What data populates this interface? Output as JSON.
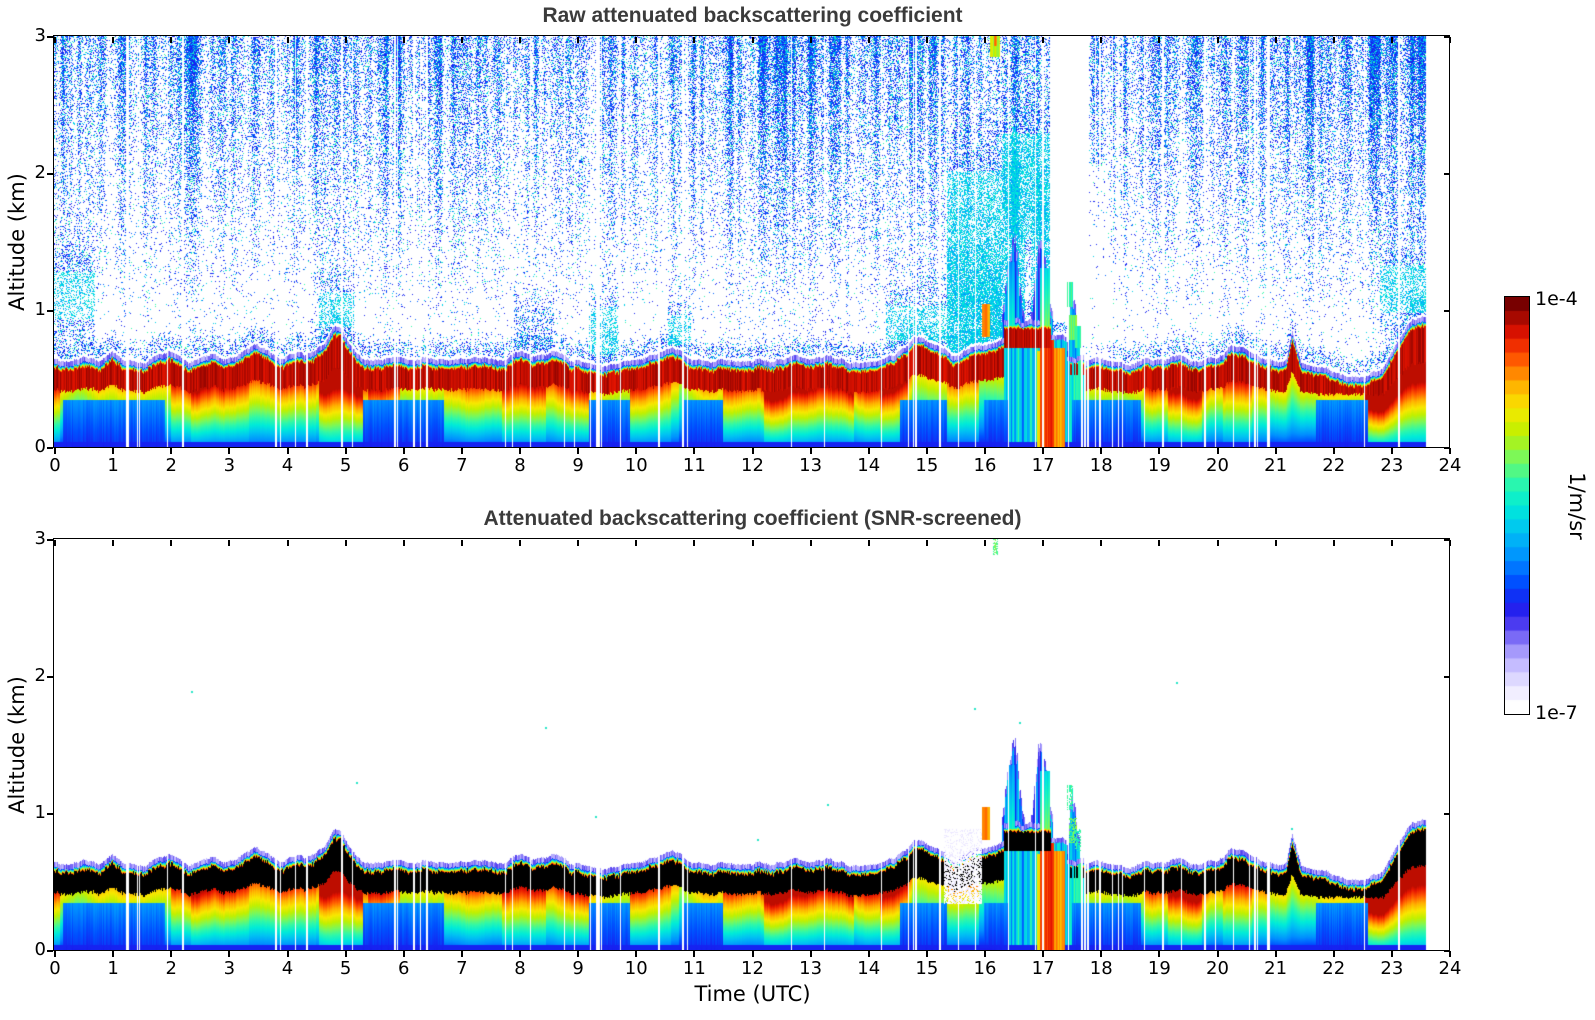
{
  "panels": [
    {
      "id": "raw",
      "title": "Raw attenuated backscattering coefficient",
      "noise": true,
      "over": false
    },
    {
      "id": "screened",
      "title": "Attenuated backscattering coefficient (SNR-screened)",
      "noise": false,
      "over": true
    }
  ],
  "chart_data": {
    "type": "heatmap",
    "x": {
      "label": "Time (UTC)",
      "range": [
        0,
        24
      ],
      "ticks": [
        0,
        1,
        2,
        3,
        4,
        5,
        6,
        7,
        8,
        9,
        10,
        11,
        12,
        13,
        14,
        15,
        16,
        17,
        18,
        19,
        20,
        21,
        22,
        23,
        24
      ]
    },
    "y": {
      "label": "Altitude (km)",
      "range": [
        0,
        3
      ],
      "ticks": [
        0,
        1,
        2,
        3
      ]
    },
    "colorbar": {
      "max_label": "1e-4",
      "min_label": "1e-7",
      "unit": "1/m/sr"
    },
    "value_range": [
      "1e-7",
      "1e-4"
    ],
    "data_end_utc": 23.6,
    "layer_top": {
      "t": [
        0,
        0.25,
        0.5,
        0.75,
        1.0,
        1.2,
        1.45,
        1.7,
        1.95,
        2.1,
        2.3,
        2.5,
        2.7,
        2.9,
        3.1,
        3.3,
        3.5,
        3.7,
        3.9,
        4.1,
        4.3,
        4.5,
        4.65,
        4.8,
        4.95,
        5.1,
        5.3,
        5.6,
        5.9,
        6.2,
        6.5,
        6.8,
        7.1,
        7.4,
        7.7,
        8.0,
        8.3,
        8.6,
        8.9,
        9.2,
        9.5,
        9.8,
        10.1,
        10.4,
        10.65,
        10.9,
        11.2,
        11.5,
        11.8,
        12.1,
        12.4,
        12.7,
        13.0,
        13.3,
        13.6,
        13.9,
        14.2,
        14.45,
        14.7,
        14.95,
        15.2,
        15.45,
        15.7,
        15.95,
        16.2,
        16.45,
        16.7,
        16.95,
        17.2,
        17.45,
        17.7,
        17.95,
        18.2,
        18.5,
        18.8,
        19.1,
        19.4,
        19.7,
        20.0,
        20.25,
        20.5,
        20.75,
        21.0,
        21.2,
        21.3,
        21.45,
        21.7,
        22.0,
        22.3,
        22.6,
        22.85,
        23.05,
        23.25,
        23.45,
        23.6
      ],
      "h": [
        0.64,
        0.61,
        0.67,
        0.62,
        0.69,
        0.63,
        0.6,
        0.65,
        0.7,
        0.67,
        0.6,
        0.63,
        0.68,
        0.62,
        0.66,
        0.71,
        0.74,
        0.68,
        0.64,
        0.7,
        0.66,
        0.71,
        0.76,
        0.88,
        0.84,
        0.72,
        0.65,
        0.62,
        0.66,
        0.62,
        0.65,
        0.62,
        0.64,
        0.66,
        0.63,
        0.7,
        0.66,
        0.69,
        0.63,
        0.61,
        0.59,
        0.62,
        0.64,
        0.67,
        0.72,
        0.65,
        0.61,
        0.63,
        0.61,
        0.64,
        0.62,
        0.66,
        0.63,
        0.67,
        0.62,
        0.6,
        0.63,
        0.68,
        0.76,
        0.8,
        0.74,
        0.66,
        0.7,
        0.74,
        0.78,
        0.8,
        0.82,
        0.85,
        0.8,
        0.66,
        0.62,
        0.64,
        0.62,
        0.6,
        0.64,
        0.62,
        0.66,
        0.62,
        0.66,
        0.73,
        0.7,
        0.64,
        0.62,
        0.64,
        0.86,
        0.62,
        0.58,
        0.55,
        0.5,
        0.52,
        0.58,
        0.72,
        0.88,
        0.95,
        0.94
      ]
    },
    "band_overrides": [
      {
        "t0": 16.33,
        "t1": 17.15,
        "top": 0.92,
        "coreTop": 0.86,
        "coreBot": 0.72,
        "under": "plume"
      },
      {
        "t0": 17.15,
        "t1": 17.42,
        "top": 0.8,
        "coreTop": 0,
        "coreBot": 0,
        "under": "plume"
      },
      {
        "t0": 17.42,
        "t1": 17.75,
        "top": 0.66,
        "coreTop": 0.6,
        "coreBot": 0.52,
        "under": "plume",
        "broken": 0.55
      }
    ],
    "plumes": [
      {
        "pts": [
          [
            16.3,
            0.92
          ],
          [
            16.36,
            1.15
          ],
          [
            16.43,
            1.38
          ],
          [
            16.5,
            1.6
          ],
          [
            16.57,
            1.38
          ],
          [
            16.63,
            1.1
          ],
          [
            16.7,
            0.95
          ]
        ]
      },
      {
        "pts": [
          [
            16.8,
            0.92
          ],
          [
            16.88,
            1.25
          ],
          [
            16.94,
            1.5
          ],
          [
            17.0,
            1.42
          ],
          [
            17.06,
            1.3
          ],
          [
            17.12,
            1.1
          ],
          [
            17.18,
            0.95
          ]
        ]
      },
      {
        "pts": [
          [
            17.42,
            0.7
          ],
          [
            17.47,
            1.02
          ],
          [
            17.52,
            1.14
          ],
          [
            17.58,
            0.96
          ],
          [
            17.64,
            0.78
          ]
        ]
      }
    ],
    "hot_streaks": [
      {
        "t0": 15.95,
        "t1": 16.09,
        "z0": 0.8,
        "z1": 1.04,
        "v": 0.8
      },
      {
        "t0": 16.42,
        "t1": 16.52,
        "z0": 0.8,
        "z1": 1.35,
        "v": 0.52,
        "fade": true
      },
      {
        "t0": 16.9,
        "t1": 16.95,
        "z0": 0.0,
        "z1": 0.7,
        "v": 0.7
      },
      {
        "t0": 16.95,
        "t1": 17.2,
        "z0": 0.0,
        "z1": 0.78,
        "v": 0.86
      },
      {
        "t0": 17.2,
        "t1": 17.38,
        "z0": 0.0,
        "z1": 0.72,
        "v": 0.78
      },
      {
        "t0": 16.95,
        "t1": 17.12,
        "z0": 0.78,
        "z1": 1.3,
        "v": 0.62,
        "fade": true
      }
    ],
    "blobs_raw": [
      {
        "t0": 16.1,
        "t1": 16.27,
        "z0": 2.84,
        "z1": 3.0,
        "v": 0.62
      },
      {
        "t0": 16.16,
        "t1": 16.22,
        "z0": 2.92,
        "z1": 3.0,
        "v": 0.78
      },
      {
        "t0": 17.42,
        "t1": 17.52,
        "z0": 1.02,
        "z1": 1.2,
        "v": 0.5
      },
      {
        "t0": 17.46,
        "t1": 17.6,
        "z0": 0.78,
        "z1": 0.96,
        "v": 0.55
      },
      {
        "t0": 17.56,
        "t1": 17.7,
        "z0": 0.72,
        "z1": 0.88,
        "v": 0.48
      }
    ],
    "blobs_screened": [
      {
        "t0": 16.15,
        "t1": 16.24,
        "z0": 2.88,
        "z1": 3.0,
        "v": 0.55
      },
      {
        "t0": 17.42,
        "t1": 17.52,
        "z0": 1.02,
        "z1": 1.2,
        "v": 0.5
      },
      {
        "t0": 17.46,
        "t1": 17.6,
        "z0": 0.78,
        "z1": 0.96,
        "v": 0.55
      },
      {
        "t0": 17.56,
        "t1": 17.7,
        "z0": 0.72,
        "z1": 0.88,
        "v": 0.48
      }
    ],
    "lavender_region": {
      "t0": 15.3,
      "t1": 15.95,
      "z0": 0.33,
      "z1": 0.88
    },
    "ground_blue_ranges": [
      [
        0.15,
        1.9
      ],
      [
        5.3,
        6.7
      ],
      [
        9.2,
        9.9
      ],
      [
        10.8,
        11.5
      ],
      [
        14.55,
        15.35
      ],
      [
        16.0,
        16.4
      ],
      [
        17.5,
        18.7
      ],
      [
        21.7,
        22.6
      ]
    ],
    "intensity_mod": [
      [
        0.1,
        2.0,
        0.85
      ],
      [
        2.35,
        3.35,
        1.12
      ],
      [
        3.35,
        4.5,
        1.06
      ],
      [
        4.55,
        5.3,
        1.22
      ],
      [
        5.4,
        5.95,
        1.12
      ],
      [
        5.95,
        6.7,
        0.9
      ],
      [
        7.7,
        8.45,
        1.15
      ],
      [
        9.2,
        9.9,
        0.85
      ],
      [
        9.9,
        10.6,
        1.1
      ],
      [
        10.75,
        11.5,
        0.85
      ],
      [
        12.2,
        13.75,
        1.18
      ],
      [
        14.2,
        14.7,
        1.12
      ],
      [
        14.75,
        15.35,
        0.88
      ],
      [
        15.9,
        16.4,
        0.78
      ],
      [
        17.45,
        18.75,
        0.85
      ],
      [
        19.15,
        19.75,
        1.15
      ],
      [
        20.1,
        20.6,
        1.1
      ],
      [
        20.9,
        22.55,
        0.88
      ],
      [
        22.55,
        23.6,
        1.3
      ]
    ],
    "gaps": {
      "base": 0.035,
      "dense": 0.1,
      "dense_ranges": [
        [
          0.8,
          2.3
        ],
        [
          4.9,
          6.8
        ],
        [
          9.2,
          9.8
        ],
        [
          10.7,
          11.35
        ],
        [
          13.9,
          14.25
        ],
        [
          15.3,
          16.0
        ],
        [
          16.55,
          18.3
        ],
        [
          18.9,
          19.5
        ],
        [
          20.6,
          21.05
        ],
        [
          22.1,
          22.5
        ]
      ]
    },
    "noise": {
      "base_amp": 0.5,
      "white_zone": [
        17.12,
        17.78
      ],
      "reduced_zone": [
        17.78,
        18.12
      ],
      "boosts": [
        {
          "t0": 15.35,
          "t1": 16.3,
          "zc": 1.05,
          "zs": 0.45,
          "amp": 0.75
        },
        {
          "t0": 15.35,
          "t1": 16.3,
          "zc": 1.8,
          "zs": 0.45,
          "amp": 0.3
        },
        {
          "t0": 16.3,
          "t1": 17.15,
          "zc": 1.9,
          "zs": 0.5,
          "amp": 0.45
        },
        {
          "t0": 9.2,
          "t1": 9.7,
          "zc": 0.85,
          "zs": 0.25,
          "amp": 0.4
        },
        {
          "t0": 10.55,
          "t1": 10.95,
          "zc": 0.85,
          "zs": 0.25,
          "amp": 0.3
        },
        {
          "t0": 4.55,
          "t1": 5.15,
          "zc": 1.0,
          "zs": 0.3,
          "amp": 0.3
        },
        {
          "t0": 0.0,
          "t1": 0.7,
          "zc": 1.1,
          "zs": 0.4,
          "amp": 0.3
        },
        {
          "t0": 7.9,
          "t1": 8.6,
          "zc": 0.85,
          "zs": 0.25,
          "amp": 0.25
        },
        {
          "t0": 14.3,
          "t1": 15.35,
          "zc": 0.9,
          "zs": 0.3,
          "amp": 0.3
        },
        {
          "t0": 22.8,
          "t1": 23.6,
          "zc": 1.15,
          "zs": 0.3,
          "amp": 0.35
        }
      ]
    },
    "specks": [
      [
        2.35,
        1.88
      ],
      [
        5.2,
        1.22
      ],
      [
        8.45,
        1.62
      ],
      [
        9.3,
        0.97
      ],
      [
        12.1,
        0.8
      ],
      [
        13.3,
        1.06
      ],
      [
        15.83,
        1.76
      ],
      [
        16.6,
        1.66
      ],
      [
        19.3,
        1.95
      ],
      [
        21.28,
        0.88
      ]
    ],
    "colormap": {
      "stops": [
        [
          0.0,
          "#ffffff"
        ],
        [
          0.05,
          "#eae6ff"
        ],
        [
          0.1,
          "#c8c0ff"
        ],
        [
          0.15,
          "#9a8cfa"
        ],
        [
          0.2,
          "#5340f0"
        ],
        [
          0.25,
          "#1a1aee"
        ],
        [
          0.31,
          "#0050ff"
        ],
        [
          0.37,
          "#0090ff"
        ],
        [
          0.44,
          "#00c4f2"
        ],
        [
          0.5,
          "#00ecd8"
        ],
        [
          0.56,
          "#30f8a8"
        ],
        [
          0.62,
          "#7cf858"
        ],
        [
          0.68,
          "#c0f000"
        ],
        [
          0.74,
          "#f8e800"
        ],
        [
          0.8,
          "#ffb000"
        ],
        [
          0.86,
          "#ff5a00"
        ],
        [
          0.92,
          "#e61400"
        ],
        [
          1.0,
          "#780000"
        ]
      ],
      "over": "#000000"
    }
  }
}
